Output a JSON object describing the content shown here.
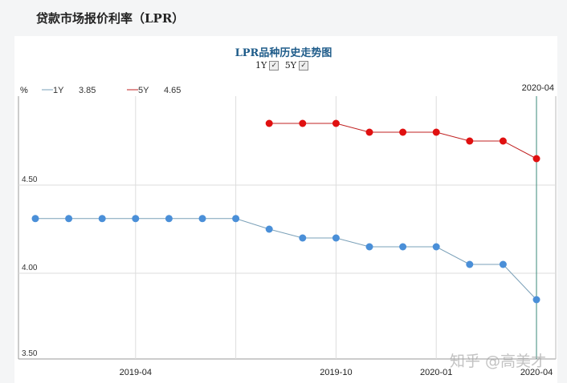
{
  "page_title": "贷款市场报价利率（LPR）",
  "watermark": "知乎 @高美才",
  "chart_data": {
    "type": "line",
    "title": "LPR品种历史走势图",
    "toggles": [
      {
        "label": "1Y",
        "checked": true
      },
      {
        "label": "5Y",
        "checked": true
      }
    ],
    "ylabel": "%",
    "ylim": [
      3.5,
      4.95
    ],
    "yticks": [
      "4.50",
      "4.00",
      "3.50"
    ],
    "x": [
      "2019-01",
      "2019-02",
      "2019-03",
      "2019-04",
      "2019-05",
      "2019-06",
      "2019-07",
      "2019-08",
      "2019-09",
      "2019-10",
      "2019-11",
      "2019-12",
      "2020-01",
      "2020-02",
      "2020-03",
      "2020-04"
    ],
    "xticks": [
      "2019-04",
      "2019-07",
      "2019-10",
      "2020-01",
      "2020-04"
    ],
    "xtick_labels": [
      "2019-04",
      "2019-10",
      "2020-01",
      "2020-04"
    ],
    "cursor": {
      "label": "2020-04"
    },
    "grid": true,
    "legend": "top-left",
    "series": [
      {
        "name": "1Y",
        "legend_value": "3.85",
        "color": "#4a8fd8",
        "line_color": "#7aa0b8",
        "values": [
          4.31,
          4.31,
          4.31,
          4.31,
          4.31,
          4.31,
          4.31,
          4.25,
          4.2,
          4.2,
          4.15,
          4.15,
          4.15,
          4.05,
          4.05,
          3.85
        ]
      },
      {
        "name": "5Y",
        "legend_value": "4.65",
        "color": "#e01010",
        "line_color": "#c02020",
        "values": [
          null,
          null,
          null,
          null,
          null,
          null,
          null,
          4.85,
          4.85,
          4.85,
          4.8,
          4.8,
          4.8,
          4.75,
          4.75,
          4.65
        ]
      }
    ]
  }
}
